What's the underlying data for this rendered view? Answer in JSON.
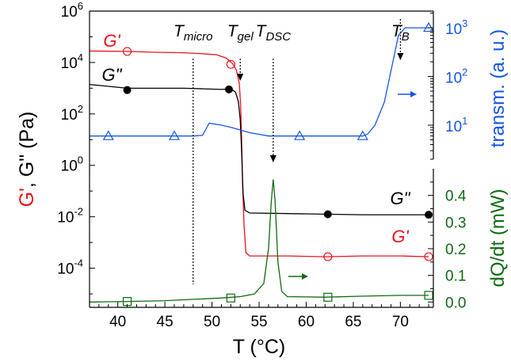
{
  "chart_data": {
    "type": "line",
    "xlabel": "T (°C)",
    "xlim": [
      37,
      73.5
    ],
    "x_ticks": [
      40,
      45,
      50,
      55,
      60,
      65,
      70
    ],
    "left_axis": {
      "label_parts": [
        {
          "text": "G'",
          "color": "#e8141c"
        },
        {
          "text": ", ",
          "color": "#000000"
        },
        {
          "text": "G\"",
          "color": "#000000"
        },
        {
          "text": " (Pa)",
          "color": "#000000"
        }
      ],
      "scale": "log",
      "ylim": [
        3e-06,
        1000000.0
      ],
      "tick_exponents": [
        6,
        4,
        2,
        0,
        -2,
        -4
      ]
    },
    "right_top_axis": {
      "label": "transm. (a. u.)",
      "color": "#1655e6",
      "scale": "log",
      "ylim": [
        2,
        2200
      ],
      "tick_exponents": [
        3,
        2,
        1
      ]
    },
    "right_bottom_axis": {
      "label": "dQ/dt (mW)",
      "color": "#0f6b12",
      "scale": "linear",
      "ylim": [
        -0.02,
        0.5
      ],
      "ticks": [
        0.0,
        0.1,
        0.2,
        0.3,
        0.4
      ]
    },
    "markers_vlines": [
      {
        "label": "T",
        "sub": "micro",
        "x": 48
      },
      {
        "label": "T",
        "sub": "gel",
        "x": 53
      },
      {
        "label": "T",
        "sub": "DSC",
        "x": 56.5
      },
      {
        "label": "T",
        "sub": "B",
        "x": 70
      }
    ],
    "series_labels": [
      {
        "text": "G'",
        "color": "#e8141c"
      },
      {
        "text": "G\"",
        "color": "#000000"
      },
      {
        "text": "G\"",
        "color": "#000000"
      },
      {
        "text": "G'",
        "color": "#e8141c"
      }
    ],
    "series": [
      {
        "name": "G'",
        "axis": "left",
        "color": "#e8141c",
        "marker": "open-circle",
        "points": [
          [
            37,
            28000
          ],
          [
            41,
            27000
          ],
          [
            44,
            25000
          ],
          [
            47,
            24000
          ],
          [
            49,
            22000
          ],
          [
            50.5,
            20000
          ],
          [
            51.5,
            15000
          ],
          [
            52.2,
            9000
          ],
          [
            52.6,
            5000
          ],
          [
            52.9,
            1500
          ],
          [
            53.05,
            200
          ],
          [
            53.15,
            10
          ],
          [
            53.25,
            0.2
          ],
          [
            53.4,
            0.005
          ],
          [
            53.6,
            0.0004
          ],
          [
            54,
            0.0003
          ],
          [
            58,
            0.0003
          ],
          [
            62,
            0.00028
          ],
          [
            66,
            0.0003
          ],
          [
            70,
            0.0003
          ],
          [
            73,
            0.00028
          ]
        ],
        "marker_points": [
          [
            41,
            27000
          ],
          [
            52,
            8500
          ],
          [
            62.3,
            0.00028
          ],
          [
            73,
            0.00028
          ]
        ]
      },
      {
        "name": "G\"",
        "axis": "left",
        "color": "#000000",
        "marker": "filled-circle",
        "points": [
          [
            37,
            1400
          ],
          [
            41,
            1000
          ],
          [
            44,
            1000
          ],
          [
            47,
            1000
          ],
          [
            49,
            950
          ],
          [
            51,
            900
          ],
          [
            52,
            950
          ],
          [
            52.5,
            700
          ],
          [
            52.8,
            300
          ],
          [
            53.0,
            60
          ],
          [
            53.1,
            10
          ],
          [
            53.2,
            1
          ],
          [
            53.3,
            0.08
          ],
          [
            53.5,
            0.018
          ],
          [
            54,
            0.014
          ],
          [
            60,
            0.013
          ],
          [
            66,
            0.012
          ],
          [
            70,
            0.012
          ],
          [
            73,
            0.012
          ]
        ],
        "marker_points": [
          [
            41,
            850
          ],
          [
            51.8,
            900
          ],
          [
            62.3,
            0.0125
          ],
          [
            73,
            0.012
          ]
        ]
      },
      {
        "name": "transm.",
        "axis": "right_top",
        "color": "#1655e6",
        "marker": "open-triangle",
        "points": [
          [
            37,
            6
          ],
          [
            40,
            6
          ],
          [
            45,
            6
          ],
          [
            48,
            6
          ],
          [
            49,
            6.2
          ],
          [
            49.7,
            11
          ],
          [
            51,
            10
          ],
          [
            52,
            9
          ],
          [
            53,
            8
          ],
          [
            54,
            7
          ],
          [
            55,
            6.5
          ],
          [
            56,
            6
          ],
          [
            60,
            6
          ],
          [
            64,
            6
          ],
          [
            66,
            6
          ],
          [
            66.5,
            6.5
          ],
          [
            67.3,
            10
          ],
          [
            68.3,
            30
          ],
          [
            69.2,
            200
          ],
          [
            69.8,
            700
          ],
          [
            70.5,
            1000
          ],
          [
            73,
            1000
          ]
        ],
        "marker_points": [
          [
            39,
            6
          ],
          [
            46,
            6
          ],
          [
            59.3,
            6
          ],
          [
            66,
            6
          ],
          [
            73,
            1000
          ]
        ]
      },
      {
        "name": "dQ/dt",
        "axis": "right_bottom",
        "color": "#0f6b12",
        "marker": "open-square",
        "points": [
          [
            37,
            0.0
          ],
          [
            41,
            0.002
          ],
          [
            45,
            0.005
          ],
          [
            48,
            0.01
          ],
          [
            51,
            0.015
          ],
          [
            53,
            0.02
          ],
          [
            54.5,
            0.03
          ],
          [
            55.5,
            0.07
          ],
          [
            56,
            0.2
          ],
          [
            56.3,
            0.38
          ],
          [
            56.5,
            0.46
          ],
          [
            56.7,
            0.38
          ],
          [
            57,
            0.15
          ],
          [
            57.4,
            0.04
          ],
          [
            58,
            0.02
          ],
          [
            62,
            0.018
          ],
          [
            66,
            0.022
          ],
          [
            70,
            0.025
          ],
          [
            73,
            0.025
          ]
        ],
        "marker_points": [
          [
            41,
            0.002
          ],
          [
            52,
            0.015
          ],
          [
            62.3,
            0.018
          ],
          [
            73,
            0.025
          ]
        ]
      }
    ]
  }
}
